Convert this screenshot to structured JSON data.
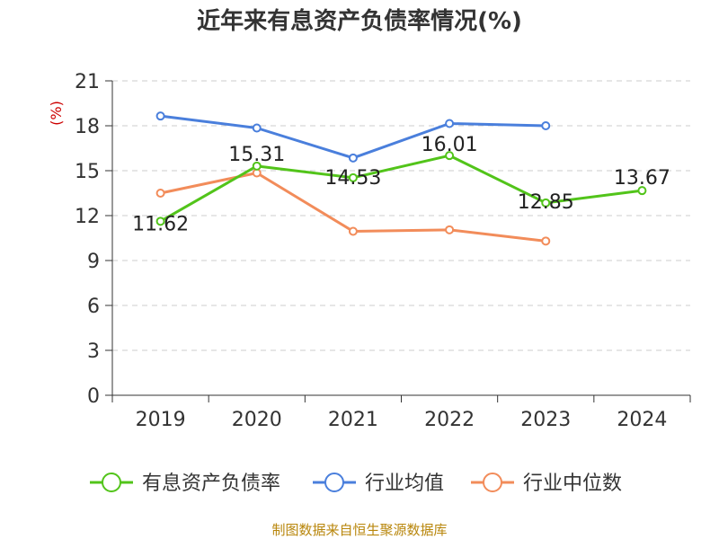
{
  "chart_data": {
    "type": "line",
    "title": "近年来有息资产负债率情况(%)",
    "ylabel": "(%)",
    "ylim": [
      0,
      21
    ],
    "yticks": [
      0,
      3,
      6,
      9,
      12,
      15,
      18,
      21
    ],
    "categories": [
      "2019",
      "2020",
      "2021",
      "2022",
      "2023",
      "2024"
    ],
    "grid": true,
    "legend": "bottom",
    "series": [
      {
        "name": "有息资产负债率",
        "color": "#52c41a",
        "values": [
          11.62,
          15.31,
          14.53,
          16.01,
          12.85,
          13.67
        ],
        "labels": [
          "11.62",
          "15.31",
          "14.53",
          "16.01",
          "12.85",
          "13.67"
        ]
      },
      {
        "name": "行业均值",
        "color": "#4a7fdc",
        "values": [
          18.65,
          17.85,
          15.85,
          18.15,
          18.0,
          null
        ]
      },
      {
        "name": "行业中位数",
        "color": "#f28c5a",
        "values": [
          13.5,
          14.85,
          10.95,
          11.05,
          10.3,
          null
        ]
      }
    ]
  },
  "source_text": "制图数据来自恒生聚源数据库"
}
